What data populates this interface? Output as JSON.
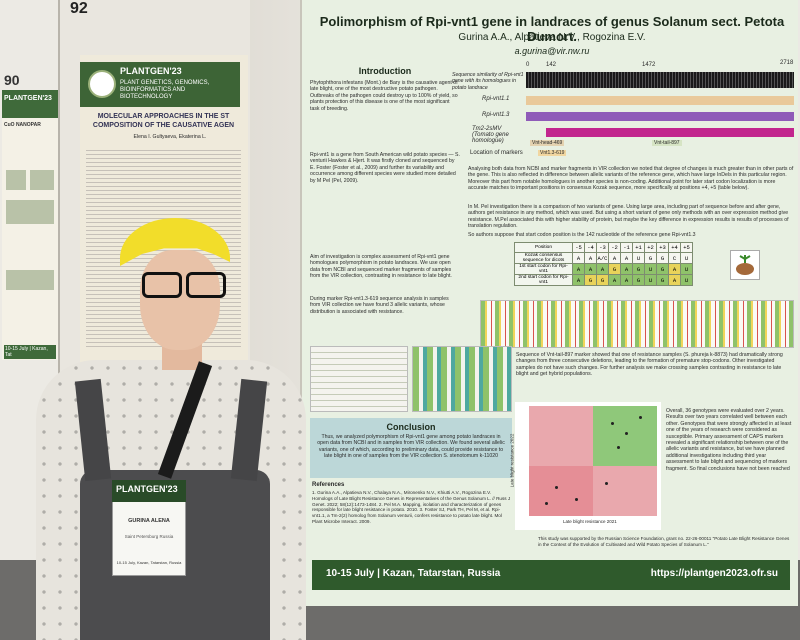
{
  "booth": {
    "left_number": "90",
    "middle_number": "92"
  },
  "left_poster": {
    "conference": "PLANTGEN'23",
    "title_fragment": "CuO NANOPAR",
    "footer": "10-15 July | Kazan, Tat"
  },
  "middle_poster": {
    "conference": "PLANTGEN'23",
    "subtitle": "PLANT GENETICS, GENOMICS, BIOINFORMATICS AND BIOTECHNOLOGY",
    "heading": "MOLECULAR APPROACHES IN THE ST COMPOSITION OF THE CAUSATIVE AGEN",
    "authors": "Elena I. Gultyaeva, Ekaterina L."
  },
  "poster": {
    "title": "Polimorphism of Rpi-vnt1 gene in landraces of genus Solanum sect. Petota Dumort.",
    "authors": "Gurina A.A., Alpatieva N.V., Rogozina E.V.",
    "email": "a.gurina@vir.nw.ru",
    "introduction": {
      "title": "Introduction",
      "p1": "Phytophthora infestans (Mont.) de Bary is the causative agent of late blight, one of the most destructive potato pathogen. Outbreaks of the pathogen could destroy up to 100% of yield, so plants protection of this disease is one of the most significant task of breeding.",
      "p2": "Rpi-vnt1 is a gene from South American wild potato species — S. venturii Hawkes & Hjert. It was firstly cloned and sequenced by E. Foster (Foster et al., 2009) and further its variability and occurrence among different species were studied more detailed by M Pel (Pel, 2009).",
      "p3": "Aim of investigation is complex assessment of Rpi-vnt1 gene homologues polymorphism in potato landraces. We use open data from NCBI and sequenced marker fragments of samples from the VIR collection, contrasting in resistance to late blight.",
      "p4": "During marker Rpi-vnt1.3-619 sequence analysis in samples from VIR collection we have found 3 allelic variants, whose distribution is associated with resistance."
    },
    "sequence_similarity": {
      "label": "Sequence similarity of Rpi-vnt1 gene with its homologues in potato landrace",
      "ticks": [
        "0",
        "142",
        "1472",
        "2718"
      ],
      "tracks": [
        "Rpi-vnt1.1",
        "Rpi-vnt1.3",
        "Tm2-2sMV (Tomato gene homologue)"
      ],
      "markers_label": "Location of markers",
      "markers": [
        "Vnt-head-469",
        "Vnt-tail-897",
        "Vnt1.3-619"
      ]
    },
    "analysis_text": "Analysing both data from NCBI and marker fragments in VIR collection we noted that degree of changes is much greater than in other parts of the gene. This is also reflected in difference between allelic variants of the reference gene, which have large InDels in this particular region. Moreover this part from notable homologues in another species is non-coding. Additional point for later start codon localization is more accurate matches to important positions in consensus Kozak sequence, more specifically at positions +4, +5 (table below).",
    "pel_text": "In M. Pel investigation there is a comparison of two variants of gene. Using large area, including part of sequence before and after gene, authors get resistance in any method, which was used. But using a short variant of gene only methods with an over expression method give resistance. M.Pel associated this with higher stability of protein, but maybe the key difference in expression results is results of processes of translation regulation.",
    "support_text": "So authors suppose that start codon position is the 142 nucleotide of the reference gene Rpi-vnt1.3",
    "kozak_table": {
      "header_label": "Position",
      "positions": [
        "-5",
        "-4",
        "-3",
        "-2",
        "-1",
        "+1",
        "+2",
        "+3",
        "+4",
        "+5"
      ],
      "rows": [
        {
          "label": "Kozak consensus sequence for dicots",
          "cells": [
            "A",
            "A",
            "A/C",
            "A",
            "A",
            "U",
            "G",
            "G",
            "C",
            "U"
          ]
        },
        {
          "label": "1st start codon for Rpi-vnt1",
          "cells": [
            "A",
            "A",
            "A",
            "G",
            "A",
            "G",
            "U",
            "G",
            "A",
            "U"
          ]
        },
        {
          "label": "2nd start codon for Rpi-vnt1",
          "cells": [
            "A",
            "G",
            "G",
            "A",
            "A",
            "G",
            "U",
            "G",
            "A",
            "U"
          ]
        }
      ]
    },
    "resistance_text": "Sequence of Vnt-tail-897 marker showed that one of resistance samples (S. phureja k-8873) had dramatically strong changes from three consecutive deletions, leading to the formation of premature stop-codons. Other investigated samples do not have such changes. For further analysis we make crossing samples contrasting in resistance to late blight and get hybrid populations.",
    "conclusion": {
      "title": "Conclusion",
      "text": "Thus, we analyzed polymorphism of Rpi-vnt1 gene among potato landraces in open data from NCBI and in samples from VIR collection. We found several allelic variants, one of which, according to preliminary data, could provide resistance to late blight in one of samples from the VIR collection S. stenotomum k-11020"
    },
    "scatter": {
      "xlabel": "Late blight resistance 2021",
      "ylabel": "Late blight resistance 2022"
    },
    "results_text": "Overall, 36 genotypes were evaluated over 2 years. Results over two years correlated well between each other. Genotypes that were strongly affected in at least one of the years of research were considered as susceptible. Primary assessment of CAPS markers revealed a significant relationship between one of the allelic variants and resistance, but we have planned additional investigations including third year assessment to late blight and sequencing of markers fragment. So final conclusions have not been reached",
    "references_title": "References",
    "references_text": "1. Gurina A.A., Alpatieva N.V., Chalaya N.A., Mironenko N.V., Khiutti A.V., Rogozina E.V. Homologs of Late Blight Resistance Genes in Representatives of the Genus Solanum L. // Russ J Genet. 2022; 58(12):1473-1484. 2. Pel M.A. Mapping, isolation and characterization of genes responsible for late blight resistance in potato. 2010. 3. Foster SJ, Park TH, Pel M, et al. Rpi-vnt1.1, a Tm-2(2) homolog from Solanum venturii, confers resistance to potato late blight. Mol Plant Microbe Interact. 2009.",
    "acknowledgement": "This study was supported by the Russian Science Foundation, grant no. 22-26-00011 \"Potato Late Blight Resistance Genes in the Context of the Evolution of Cultivated and Wild Potato Species of Solanum L.\"",
    "footer_left": "10-15 July | Kazan, Tatarstan, Russia",
    "footer_right": "https://plantgen2023.ofr.su"
  },
  "badge": {
    "conference": "PLANTGEN'23",
    "name": "GURINA ALENA",
    "city": "Saint Petersburg Russia",
    "footer": "10-15 July, Kazan, Tatarstan, Russia"
  },
  "colors": {
    "poster_bg": "#e8f0e2",
    "footer_green": "#2f5a2c",
    "hair_yellow": "#f2dd2a",
    "track_magenta": "#c2268e",
    "track_purple": "#8f5bb8",
    "track_tan": "#e9c99a"
  }
}
